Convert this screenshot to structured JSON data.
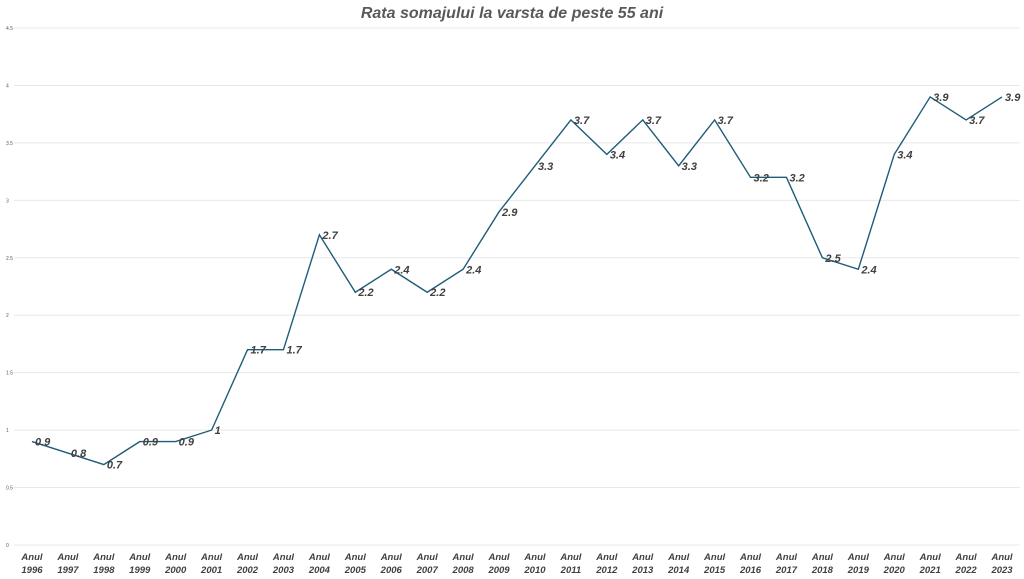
{
  "chart_data": {
    "type": "line",
    "title": "Rata somajului la varsta  de peste 55 ani",
    "xlabel": "",
    "ylabel": "",
    "ylim": [
      0,
      4.5
    ],
    "yticks": [
      "0",
      "0.5",
      "1",
      "1.5",
      "2",
      "2.5",
      "3",
      "3.5",
      "4",
      "4.5"
    ],
    "grid": true,
    "legend": "none",
    "categories": [
      [
        "Anul",
        "1996"
      ],
      [
        "Anul",
        "1997"
      ],
      [
        "Anul",
        "1998"
      ],
      [
        "Anul",
        "1999"
      ],
      [
        "Anul",
        "2000"
      ],
      [
        "Anul",
        "2001"
      ],
      [
        "Anul",
        "2002"
      ],
      [
        "Anul",
        "2003"
      ],
      [
        "Anul",
        "2004"
      ],
      [
        "Anul",
        "2005"
      ],
      [
        "Anul",
        "2006"
      ],
      [
        "Anul",
        "2007"
      ],
      [
        "Anul",
        "2008"
      ],
      [
        "Anul",
        "2009"
      ],
      [
        "Anul",
        "2010"
      ],
      [
        "Anul",
        "2011"
      ],
      [
        "Anul",
        "2012"
      ],
      [
        "Anul",
        "2013"
      ],
      [
        "Anul",
        "2014"
      ],
      [
        "Anul",
        "2015"
      ],
      [
        "Anul",
        "2016"
      ],
      [
        "Anul",
        "2017"
      ],
      [
        "Anul",
        "2018"
      ],
      [
        "Anul",
        "2019"
      ],
      [
        "Anul",
        "2020"
      ],
      [
        "Anul",
        "2021"
      ],
      [
        "Anul",
        "2022"
      ],
      [
        "Anul",
        "2023"
      ]
    ],
    "series": [
      {
        "values": [
          0.9,
          0.8,
          0.7,
          0.9,
          0.9,
          1,
          1.7,
          1.7,
          2.7,
          2.2,
          2.4,
          2.2,
          2.4,
          2.9,
          3.3,
          3.7,
          3.4,
          3.7,
          3.3,
          3.7,
          3.2,
          3.2,
          2.5,
          2.4,
          3.4,
          3.9,
          3.7,
          3.9
        ],
        "data_labels": [
          "0.9",
          "0.8",
          "0.7",
          "0.9",
          "0.9",
          "1",
          "1.7",
          "1.7",
          "2.7",
          "2.2",
          "2.4",
          "2.2",
          "2.4",
          "2.9",
          "3.3",
          "3.7",
          "3.4",
          "3.7",
          "3.3",
          "3.7",
          "3.2",
          "3.2",
          "2.5",
          "2.4",
          "3.4",
          "3.9",
          "3.7",
          "3.9"
        ]
      }
    ],
    "colors": {
      "line": "#1f5c7a",
      "grid": "#e8e8e8",
      "text": "#404040"
    }
  }
}
